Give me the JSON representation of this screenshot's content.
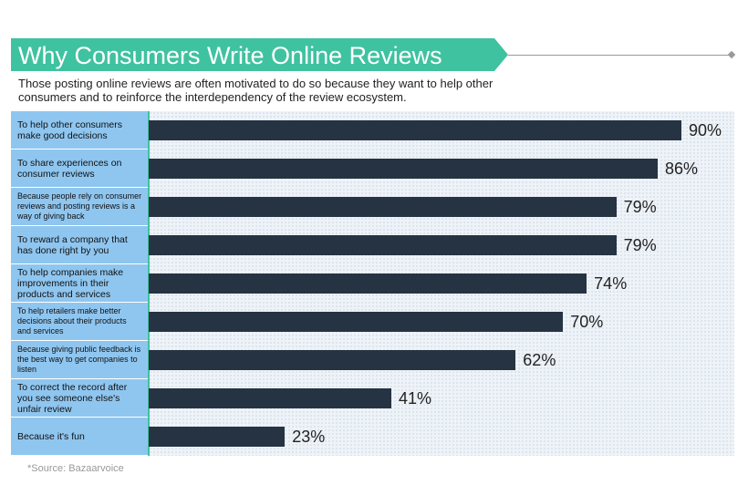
{
  "chart_data": {
    "type": "bar",
    "orientation": "horizontal",
    "title": "Why Consumers Write Online Reviews",
    "subtitle": "Those posting online reviews are often motivated to do so because they want to help other consumers and to reinforce the interdependency of the review ecosystem.",
    "categories": [
      "To help other consumers make good decisions",
      "To share experiences on consumer reviews",
      "Because people rely on consumer reviews and posting reviews is a way of giving back",
      "To reward a company that has done right by you",
      "To help companies make improvements in their products and services",
      "To help retailers make better decisions about their products and services",
      "Because giving public feedback is the best way to get companies to listen",
      "To correct the record after you see someone else's unfair review",
      "Because it's fun"
    ],
    "values": [
      90,
      86,
      79,
      79,
      74,
      70,
      62,
      41,
      23
    ],
    "value_labels": [
      "90%",
      "86%",
      "79%",
      "79%",
      "74%",
      "70%",
      "62%",
      "41%",
      "23%"
    ],
    "color": "#253343",
    "source": "*Source: Bazaarvoice"
  }
}
